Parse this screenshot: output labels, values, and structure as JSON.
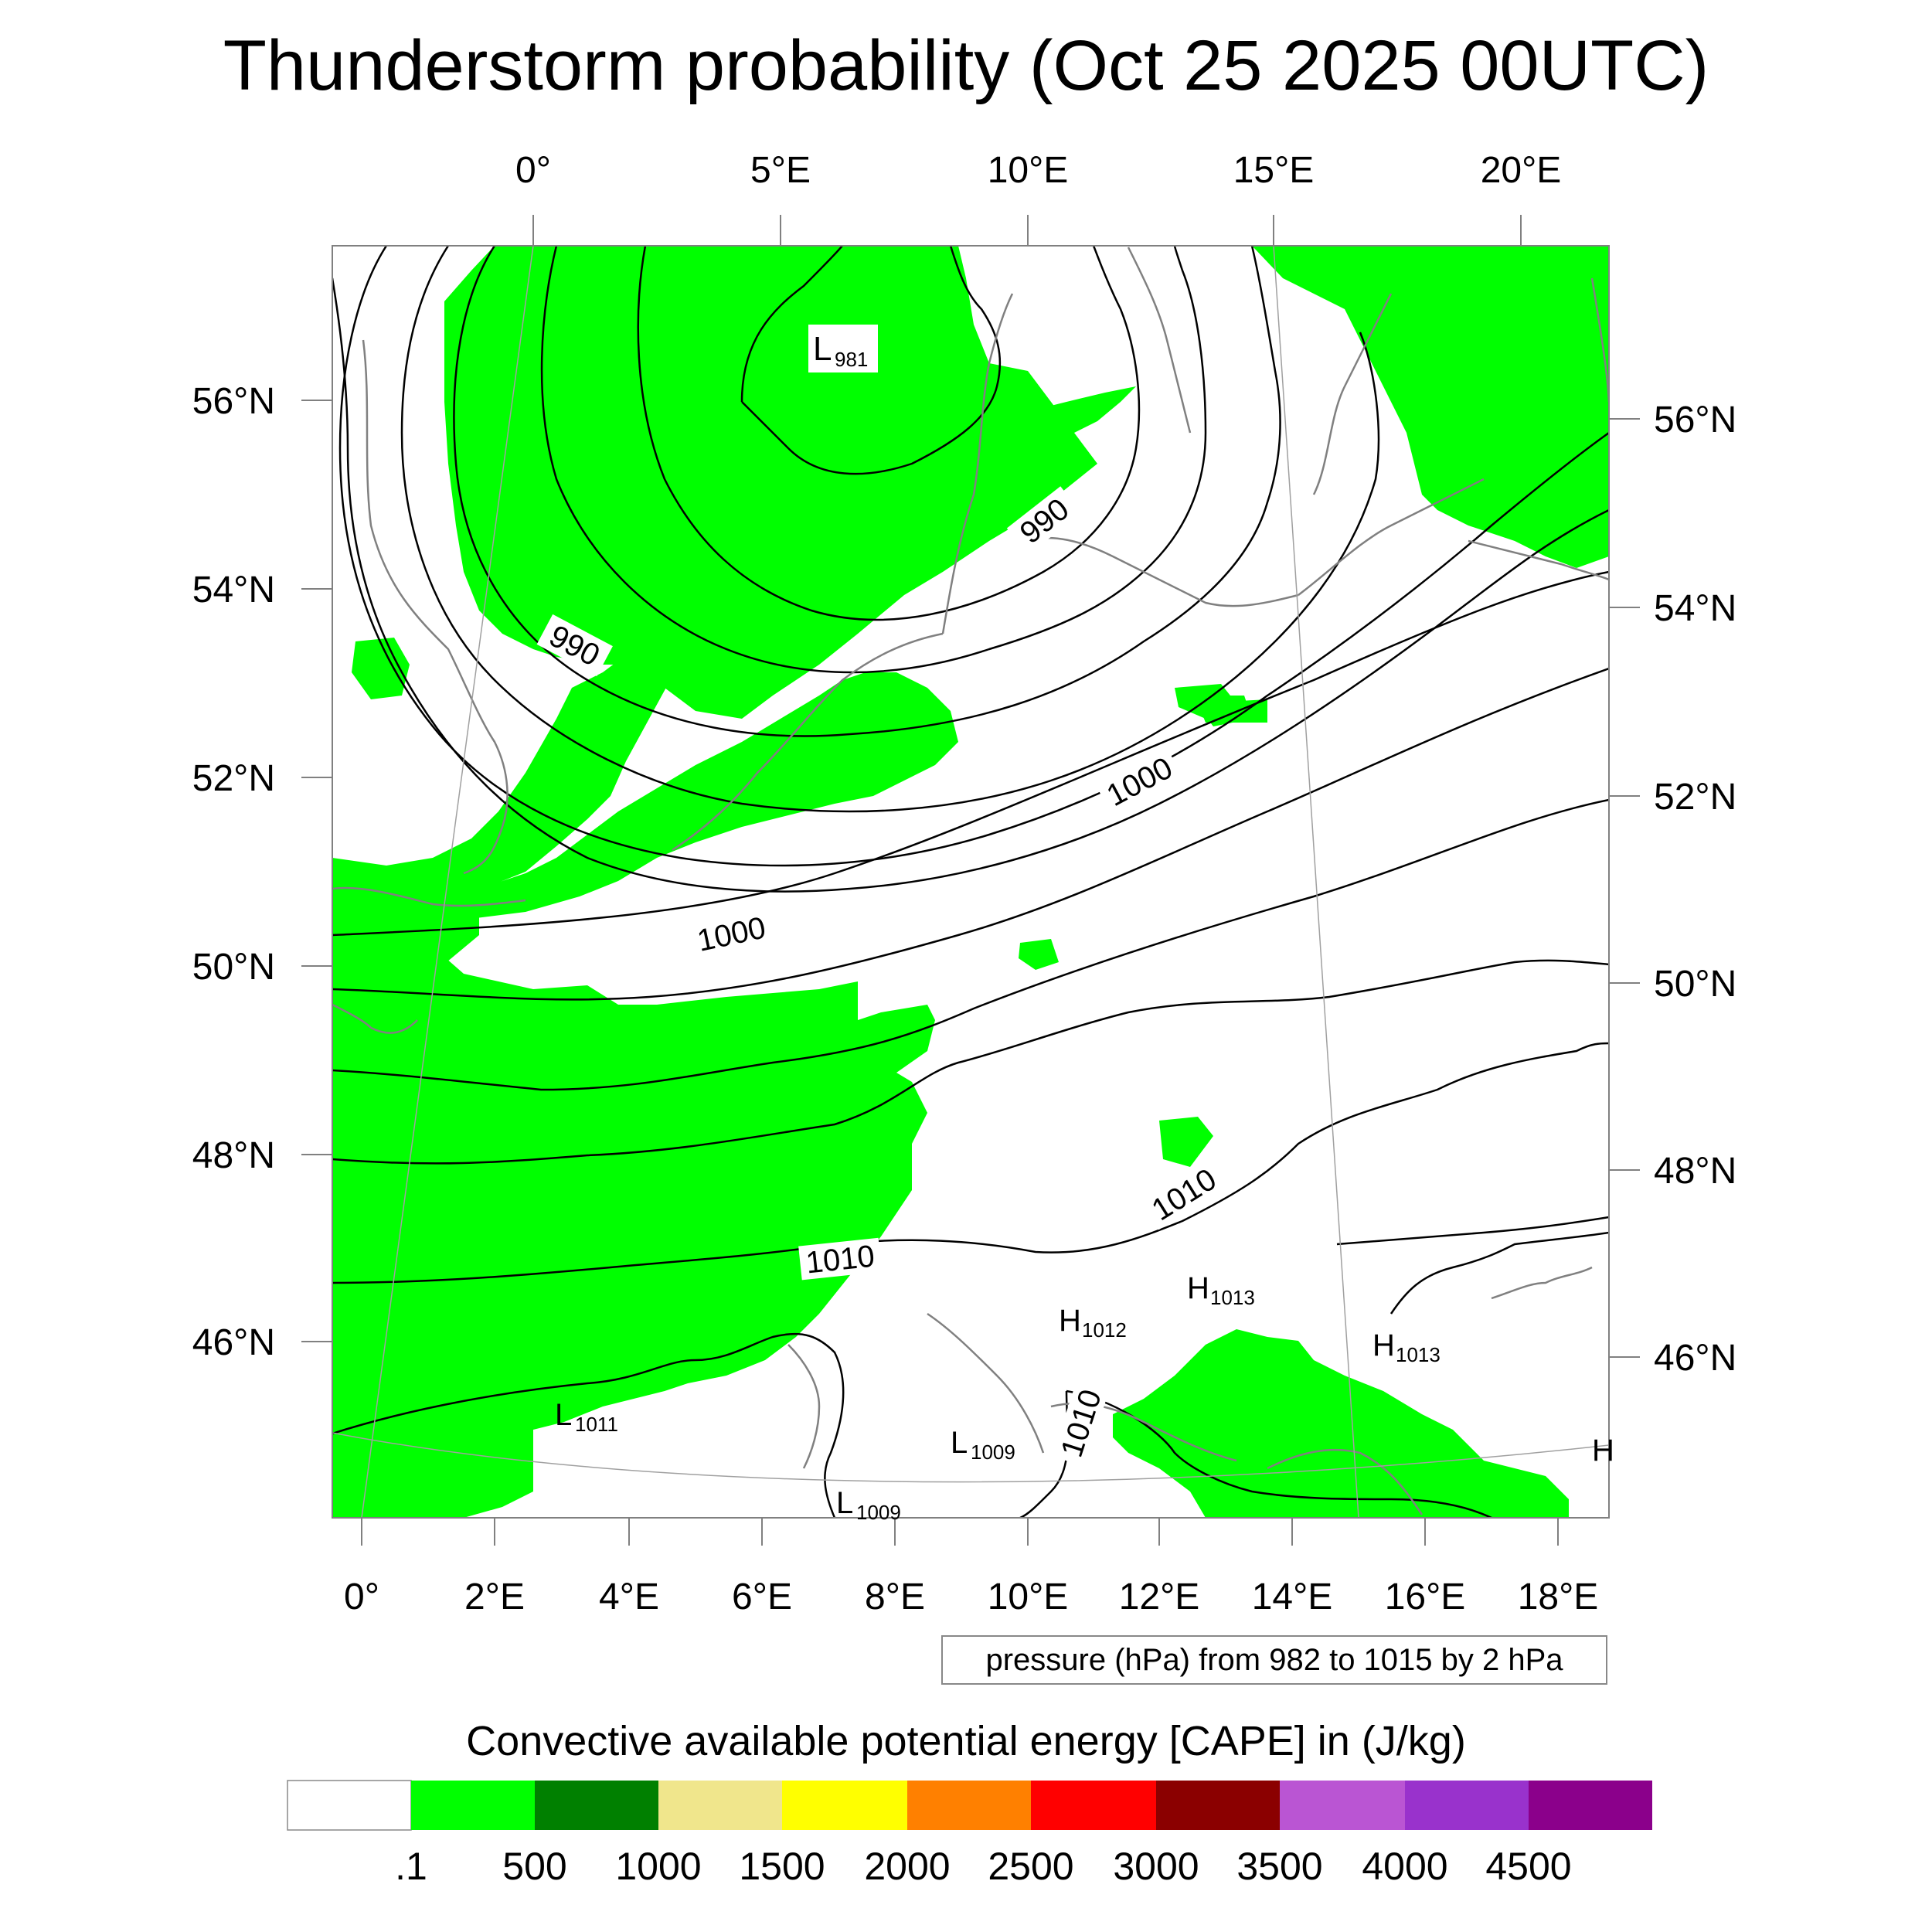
{
  "title": "Thunderstorm probability (Oct 25 2025 00UTC)",
  "map": {
    "top_lon_labels": [
      "0°",
      "5°E",
      "10°E",
      "15°E",
      "20°E"
    ],
    "bottom_lon_labels": [
      "0°",
      "2°E",
      "4°E",
      "6°E",
      "8°E",
      "10°E",
      "12°E",
      "14°E",
      "16°E",
      "18°E"
    ],
    "left_lat_labels": [
      "56°N",
      "54°N",
      "52°N",
      "50°N",
      "48°N",
      "46°N"
    ],
    "right_lat_labels": [
      "56°N",
      "54°N",
      "52°N",
      "50°N",
      "48°N",
      "46°N"
    ],
    "contour_labels": [
      "990",
      "990",
      "1000",
      "1000",
      "1010",
      "1010",
      "1010"
    ],
    "pressure_centers": [
      {
        "type": "L",
        "value": "981"
      },
      {
        "type": "L",
        "value": "1011"
      },
      {
        "type": "L",
        "value": "1009"
      },
      {
        "type": "L",
        "value": "1009"
      },
      {
        "type": "H",
        "value": "1012"
      },
      {
        "type": "H",
        "value": "1013"
      },
      {
        "type": "H",
        "value": "1013"
      },
      {
        "type": "H",
        "value": ""
      }
    ],
    "contour_info": "pressure (hPa) from 982 to 1015 by 2 hPa",
    "cape_fill_color": "#00ff00",
    "coastline_color": "#808080",
    "isobar_color": "#000000"
  },
  "colorbar": {
    "title": "Convective available potential energy [CAPE] in (J/kg)",
    "colors": [
      "#ffffff",
      "#00ff00",
      "#008000",
      "#f0e68c",
      "#ffff00",
      "#ff8000",
      "#ff0000",
      "#8b0000",
      "#ba55d3",
      "#9932cc",
      "#8b008b"
    ],
    "labels": [
      ".1",
      "500",
      "1000",
      "1500",
      "2000",
      "2500",
      "3000",
      "3500",
      "4000",
      "4500"
    ]
  }
}
